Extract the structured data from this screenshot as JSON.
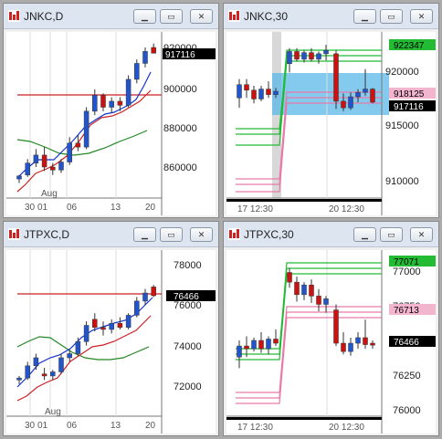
{
  "colors": {
    "up": "#2255cc",
    "down": "#cc1111",
    "ema_blue": "#1133cc",
    "ema_red": "#cc2222",
    "ema_green": "#228822",
    "current_box": "#000000",
    "pink": "#e87aa8",
    "green_level": "#22bb33",
    "box_blue": "#5ab8e8"
  },
  "windows": [
    {
      "title": "JNKC,D",
      "icons": [
        "minimize-icon",
        "maximize-icon",
        "close-icon"
      ],
      "price_labels": [
        "920000",
        "900000",
        "880000",
        "860000"
      ],
      "current_price": "917116",
      "date_labels": [
        "30",
        "01",
        "06",
        "13",
        "20"
      ],
      "month_label": "Aug"
    },
    {
      "title": "JNKC,30",
      "icons": [
        "minimize-icon",
        "maximize-icon",
        "close-icon"
      ],
      "price_labels": [
        "920000",
        "915000",
        "910000"
      ],
      "high_price": "922347",
      "pink_price": "918125",
      "current_price": "917116",
      "date_labels": [
        "17 12:30",
        "20 12:30"
      ]
    },
    {
      "title": "JTPXC,D",
      "icons": [
        "minimize-icon",
        "maximize-icon",
        "close-icon"
      ],
      "price_labels": [
        "78000",
        "76000",
        "74000",
        "72000"
      ],
      "current_price": "76466",
      "date_labels": [
        "30",
        "01",
        "06",
        "13",
        "20"
      ],
      "month_label": "Aug"
    },
    {
      "title": "JTPXC,30",
      "icons": [
        "minimize-icon",
        "maximize-icon",
        "close-icon"
      ],
      "price_labels": [
        "77000",
        "76750",
        "76500",
        "76250",
        "76000"
      ],
      "high_price": "77071",
      "pink_price": "76713",
      "current_price": "76466",
      "date_labels": [
        "17 12:30",
        "20 12:30"
      ]
    }
  ],
  "candles": {
    "jnkc_d": [
      [
        854000,
        856000,
        852000,
        855500
      ],
      [
        856000,
        864000,
        855000,
        862000
      ],
      [
        862000,
        869000,
        860000,
        866000
      ],
      [
        866000,
        870000,
        858000,
        860000
      ],
      [
        860000,
        862000,
        856000,
        858500
      ],
      [
        858500,
        864000,
        857000,
        862500
      ],
      [
        862500,
        875000,
        861000,
        872000
      ],
      [
        872000,
        876000,
        868000,
        870000
      ],
      [
        870000,
        890000,
        869000,
        888000
      ],
      [
        888000,
        899000,
        886000,
        896000
      ],
      [
        896000,
        897000,
        888000,
        890000
      ],
      [
        890000,
        895000,
        887000,
        893000
      ],
      [
        893000,
        895000,
        888000,
        891000
      ],
      [
        891000,
        906000,
        890000,
        904000
      ],
      [
        904000,
        914000,
        902000,
        912000
      ],
      [
        912000,
        920000,
        910000,
        918000
      ],
      [
        920000,
        922000,
        917000,
        917116
      ]
    ],
    "jtpxc_d": [
      [
        72300,
        72500,
        72100,
        72400
      ],
      [
        72400,
        73200,
        72300,
        73000
      ],
      [
        73000,
        73600,
        72800,
        73400
      ],
      [
        72600,
        72900,
        72300,
        72500
      ],
      [
        72500,
        72800,
        72300,
        72700
      ],
      [
        72700,
        73600,
        72600,
        73400
      ],
      [
        73400,
        73800,
        73200,
        73600
      ],
      [
        73600,
        74400,
        73500,
        74200
      ],
      [
        74200,
        75200,
        74000,
        75000
      ],
      [
        75300,
        75600,
        74700,
        74900
      ],
      [
        74900,
        75200,
        74500,
        74800
      ],
      [
        74800,
        75300,
        74600,
        75100
      ],
      [
        75100,
        75400,
        74800,
        74900
      ],
      [
        74900,
        75600,
        74800,
        75500
      ],
      [
        75500,
        76400,
        75400,
        76200
      ],
      [
        76200,
        76800,
        76000,
        76600
      ],
      [
        76900,
        77000,
        76400,
        76466
      ]
    ],
    "jnkc_30": [
      [
        917500,
        919200,
        916600,
        918700
      ],
      [
        918700,
        919200,
        917500,
        918200
      ],
      [
        918200,
        918600,
        917000,
        917400
      ],
      [
        917400,
        918600,
        917200,
        918300
      ],
      [
        918300,
        919000,
        917500,
        917800
      ],
      [
        917800,
        918400,
        917500,
        918100
      ],
      [
        920600,
        922000,
        919800,
        921700
      ],
      [
        921700,
        922000,
        920800,
        921000
      ],
      [
        921000,
        921800,
        920700,
        921600
      ],
      [
        921600,
        922000,
        920800,
        921000
      ],
      [
        921000,
        921700,
        920600,
        921500
      ],
      [
        921500,
        922300,
        920900,
        921800
      ],
      [
        921500,
        921800,
        916500,
        917200
      ],
      [
        917200,
        917900,
        916300,
        916600
      ],
      [
        916600,
        918000,
        916400,
        917600
      ],
      [
        917600,
        918300,
        917100,
        918000
      ],
      [
        918000,
        920100,
        917700,
        918300
      ],
      [
        918300,
        918400,
        917000,
        917116
      ]
    ],
    "jtpxc_30": [
      [
        76380,
        76500,
        76300,
        76460
      ],
      [
        76460,
        76530,
        76380,
        76440
      ],
      [
        76440,
        76520,
        76420,
        76500
      ],
      [
        76500,
        76560,
        76410,
        76440
      ],
      [
        76440,
        76530,
        76400,
        76510
      ],
      [
        76510,
        76580,
        76460,
        76480
      ],
      [
        76990,
        77020,
        76880,
        76920
      ],
      [
        76920,
        76960,
        76780,
        76830
      ],
      [
        76830,
        76920,
        76790,
        76900
      ],
      [
        76900,
        76940,
        76770,
        76820
      ],
      [
        76820,
        76870,
        76710,
        76760
      ],
      [
        76760,
        76820,
        76700,
        76800
      ],
      [
        76720,
        76760,
        76460,
        76480
      ],
      [
        76480,
        76560,
        76400,
        76420
      ],
      [
        76420,
        76520,
        76390,
        76480
      ],
      [
        76480,
        76560,
        76440,
        76520
      ],
      [
        76520,
        76650,
        76440,
        76470
      ],
      [
        76480,
        76500,
        76440,
        76466
      ]
    ]
  }
}
